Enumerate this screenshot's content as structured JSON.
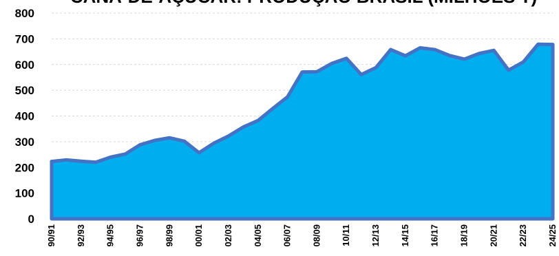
{
  "chart_data": {
    "type": "area",
    "title": "CANA-DE-AÇÚCAR: PRODUÇÃO BRASIL (MILHÕES T)",
    "xlabel": "",
    "ylabel": "",
    "ylim": [
      0,
      800
    ],
    "yticks": [
      0,
      100,
      200,
      300,
      400,
      500,
      600,
      700,
      800
    ],
    "grid": true,
    "legend": "none",
    "colors": {
      "fill": "#00aeef",
      "line": "#4472c4"
    },
    "x": [
      "90/91",
      "91/92",
      "92/93",
      "93/94",
      "94/95",
      "95/96",
      "96/97",
      "97/98",
      "98/99",
      "99/00",
      "00/01",
      "01/02",
      "02/03",
      "03/04",
      "04/05",
      "05/06",
      "06/07",
      "07/08",
      "08/09",
      "09/10",
      "10/11",
      "11/12",
      "12/13",
      "13/14",
      "14/15",
      "15/16",
      "16/17",
      "17/18",
      "18/19",
      "19/20",
      "20/21",
      "21/22",
      "22/23",
      "23/24",
      "24/25"
    ],
    "x_tick_labels": [
      "90/91",
      "92/93",
      "94/95",
      "96/97",
      "98/99",
      "00/01",
      "02/03",
      "04/05",
      "06/07",
      "08/09",
      "10/11",
      "12/13",
      "14/15",
      "16/17",
      "18/19",
      "20/21",
      "22/23",
      "24/25"
    ],
    "series": [
      {
        "values": [
          223,
          229,
          224,
          220,
          240,
          252,
          288,
          305,
          315,
          302,
          257,
          294,
          322,
          357,
          382,
          429,
          474,
          571,
          572,
          604,
          624,
          561,
          588,
          658,
          634,
          665,
          658,
          635,
          621,
          643,
          655,
          578,
          610,
          679,
          678
        ]
      }
    ]
  }
}
